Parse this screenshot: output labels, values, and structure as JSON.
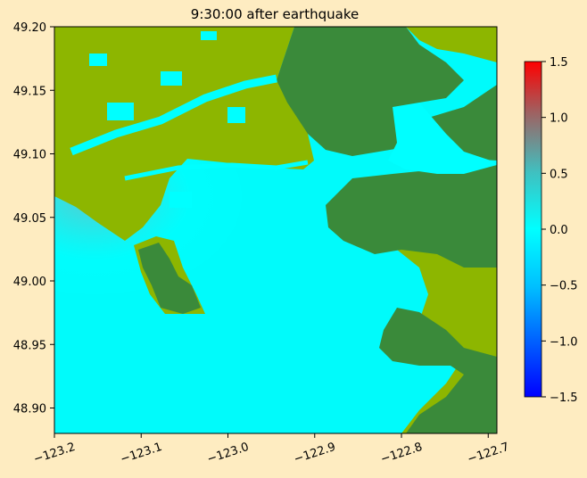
{
  "chart_data": {
    "type": "heatmap",
    "title": "9:30:00 after earthquake",
    "xlabel": "",
    "ylabel": "",
    "xlim": [
      -123.2,
      -122.69
    ],
    "ylim": [
      48.88,
      49.2
    ],
    "x_ticks": [
      -123.2,
      -123.1,
      -123.0,
      -122.9,
      -122.8,
      -122.7
    ],
    "x_tick_labels": [
      "−123.2",
      "−123.1",
      "−123.0",
      "−122.9",
      "−122.8",
      "−122.7"
    ],
    "y_ticks": [
      48.9,
      48.95,
      49.0,
      49.05,
      49.1,
      49.15,
      49.2
    ],
    "y_tick_labels": [
      "48.90",
      "48.95",
      "49.00",
      "49.05",
      "49.10",
      "49.15",
      "49.20"
    ],
    "colorbar": {
      "range": [
        -1.5,
        1.5
      ],
      "ticks": [
        -1.5,
        -1.0,
        -0.5,
        0.0,
        0.5,
        1.0,
        1.5
      ],
      "tick_labels": [
        "−1.5",
        "−1.0",
        "−0.5",
        "0.0",
        "0.5",
        "1.0",
        "1.5"
      ],
      "colors": [
        "#0000ff",
        "#00ffff",
        "#ff0000"
      ]
    },
    "land_colors": {
      "low": "#8db600",
      "high": "#3a8a3a"
    },
    "water_color": "#00ffff"
  }
}
